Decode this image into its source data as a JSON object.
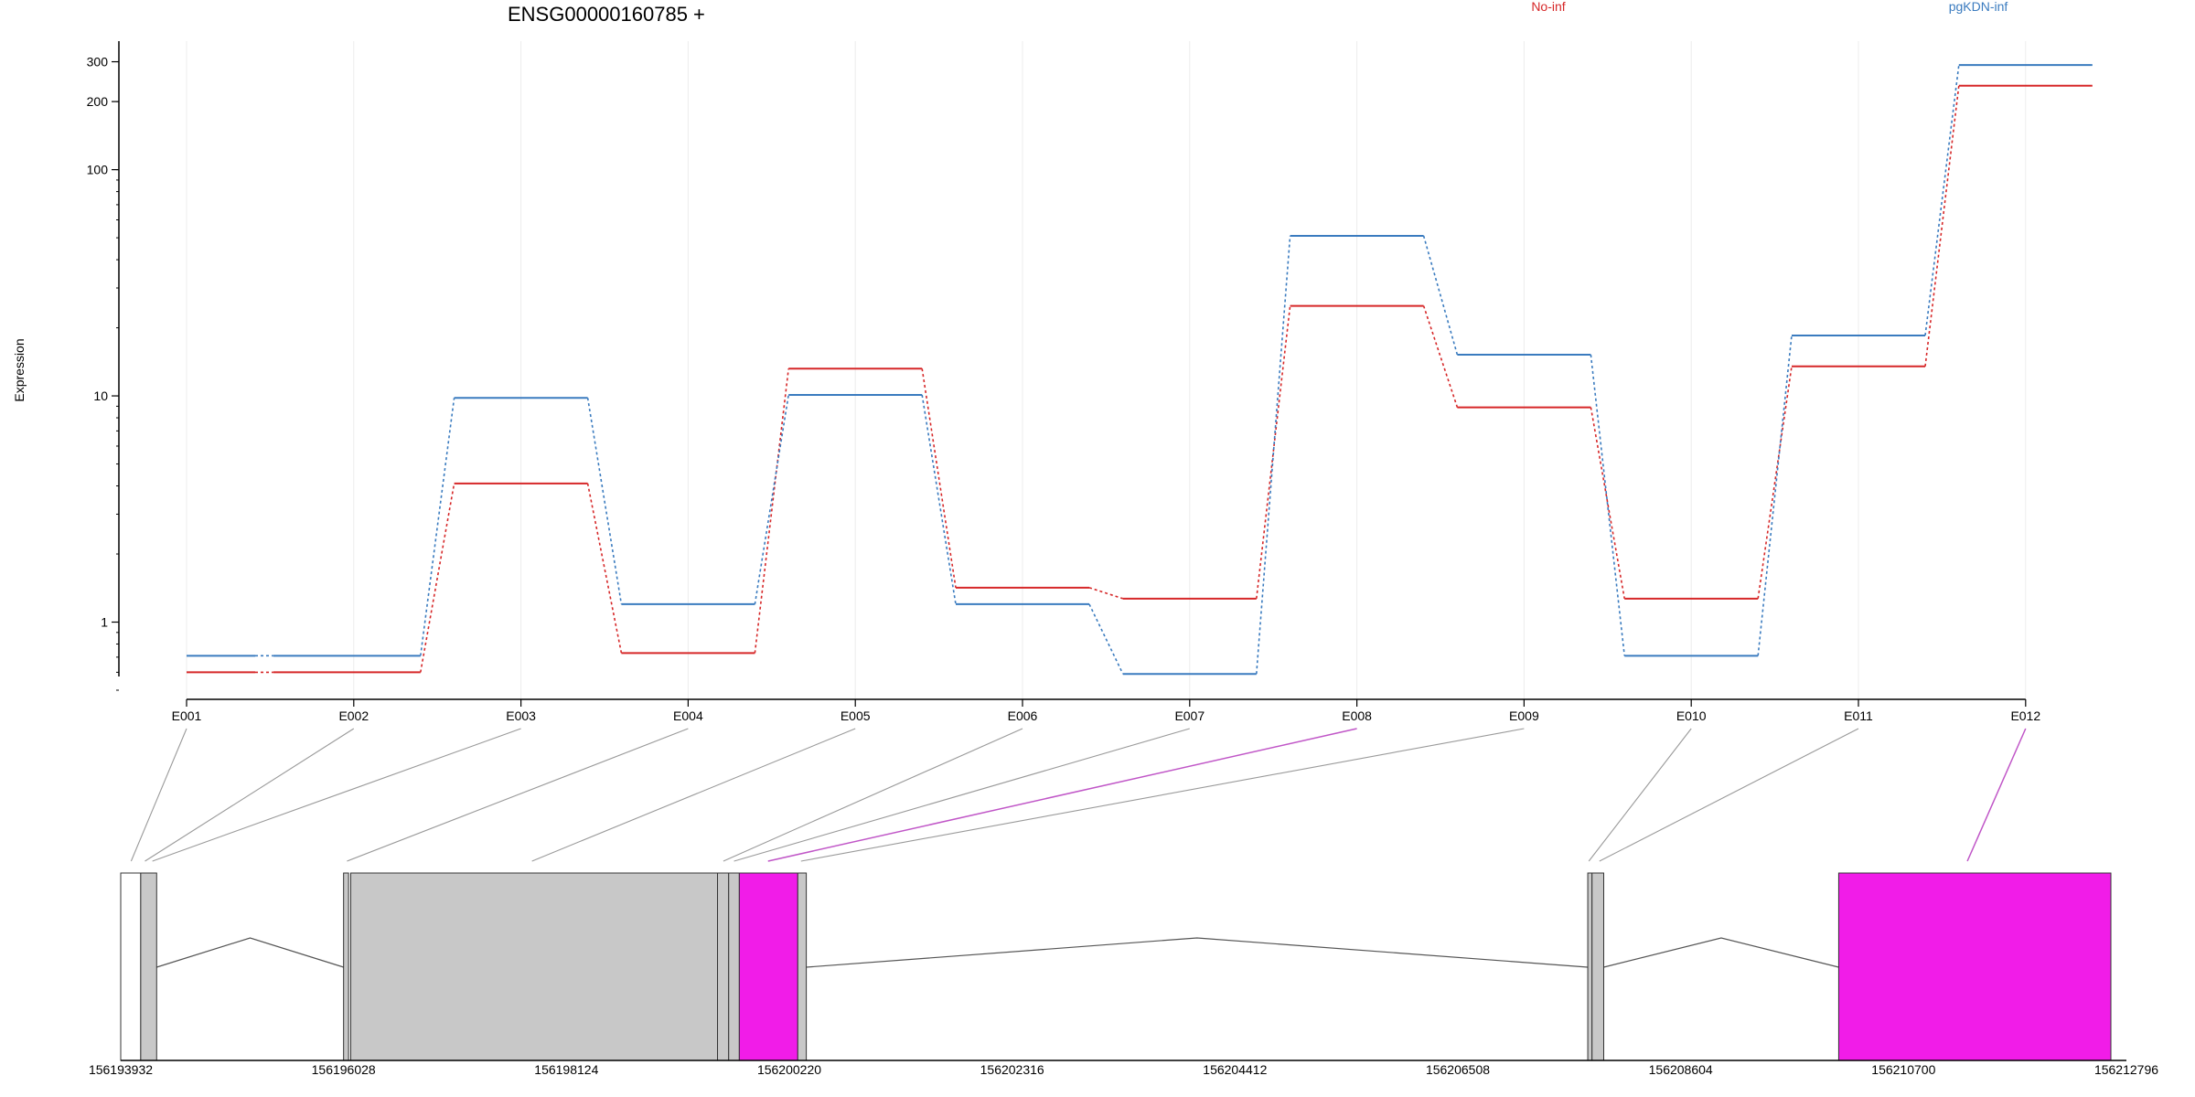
{
  "chart_data": {
    "type": "line",
    "title": "ENSG00000160785 +",
    "ylabel": "Expression",
    "xlabel": "",
    "scale": "log",
    "grid": "vertical",
    "legend_placement": "top-right",
    "yticks": [
      1,
      10,
      100,
      200,
      300
    ],
    "ytick_labels": [
      "1",
      "10",
      "100",
      "200",
      "300"
    ],
    "ylim": [
      0.5,
      370
    ],
    "categories": [
      "E001",
      "E002",
      "E003",
      "E004",
      "E005",
      "E006",
      "E007",
      "E008",
      "E009",
      "E010",
      "E011",
      "E012"
    ],
    "series": [
      {
        "name": "No-inf",
        "color": "#d62728",
        "values": [
          0.6,
          0.6,
          4.1,
          0.73,
          13.2,
          1.42,
          1.27,
          25.0,
          8.9,
          1.27,
          13.5,
          235
        ]
      },
      {
        "name": "pgKDN-inf",
        "color": "#3a7bbf",
        "values": [
          0.71,
          0.71,
          9.8,
          1.2,
          10.1,
          1.2,
          0.59,
          51,
          15.2,
          0.71,
          18.5,
          290
        ]
      }
    ],
    "gene_model": {
      "coordinates": [
        "156193932",
        "156196028",
        "156198124",
        "156200220",
        "156202316",
        "156204412",
        "156206508",
        "156208604",
        "156210700",
        "156212796"
      ],
      "coord_range": [
        156193932,
        156212796
      ],
      "exons": [
        {
          "start": 156193932,
          "end": 156194120,
          "style": "white",
          "track": "E001"
        },
        {
          "start": 156194120,
          "end": 156194270,
          "style": "grey",
          "track": "E002"
        },
        {
          "start": 156196028,
          "end": 156196075,
          "style": "grey",
          "track": "E003"
        },
        {
          "start": 156196095,
          "end": 156199545,
          "style": "grey",
          "track": "E004"
        },
        {
          "start": 156199545,
          "end": 156199650,
          "style": "grey",
          "track": "E005"
        },
        {
          "start": 156199650,
          "end": 156199750,
          "style": "grey",
          "track": "E006"
        },
        {
          "start": 156199750,
          "end": 156200300,
          "style": "magenta",
          "track": "E007"
        },
        {
          "start": 156200300,
          "end": 156200380,
          "style": "grey",
          "track": "E008"
        },
        {
          "start": 156207730,
          "end": 156207770,
          "style": "grey",
          "track": "E009"
        },
        {
          "start": 156207770,
          "end": 156207880,
          "style": "grey",
          "track": "E010"
        },
        {
          "start": 156210090,
          "end": 156212650,
          "style": "magenta",
          "track": "E011"
        }
      ],
      "introns": [
        {
          "from": 156194270,
          "to": 156196028
        },
        {
          "from": 156200380,
          "to": 156207730
        },
        {
          "from": 156207880,
          "to": 156210090
        }
      ],
      "connectors": [
        {
          "bin": "E001",
          "target": 156194030,
          "highlight": false
        },
        {
          "bin": "E002",
          "target": 156194160,
          "highlight": false
        },
        {
          "bin": "E003",
          "target": 156194230,
          "highlight": false
        },
        {
          "bin": "E004",
          "target": 156196060,
          "highlight": false
        },
        {
          "bin": "E005",
          "target": 156197800,
          "highlight": false
        },
        {
          "bin": "E006",
          "target": 156199600,
          "highlight": false
        },
        {
          "bin": "E007",
          "target": 156199700,
          "highlight": false
        },
        {
          "bin": "E008",
          "target": 156200020,
          "highlight": true
        },
        {
          "bin": "E009",
          "target": 156200330,
          "highlight": false
        },
        {
          "bin": "E010",
          "target": 156207740,
          "highlight": false
        },
        {
          "bin": "E011",
          "target": 156207840,
          "highlight": false
        },
        {
          "bin": "E012",
          "target": 156211300,
          "highlight": true
        }
      ]
    }
  }
}
